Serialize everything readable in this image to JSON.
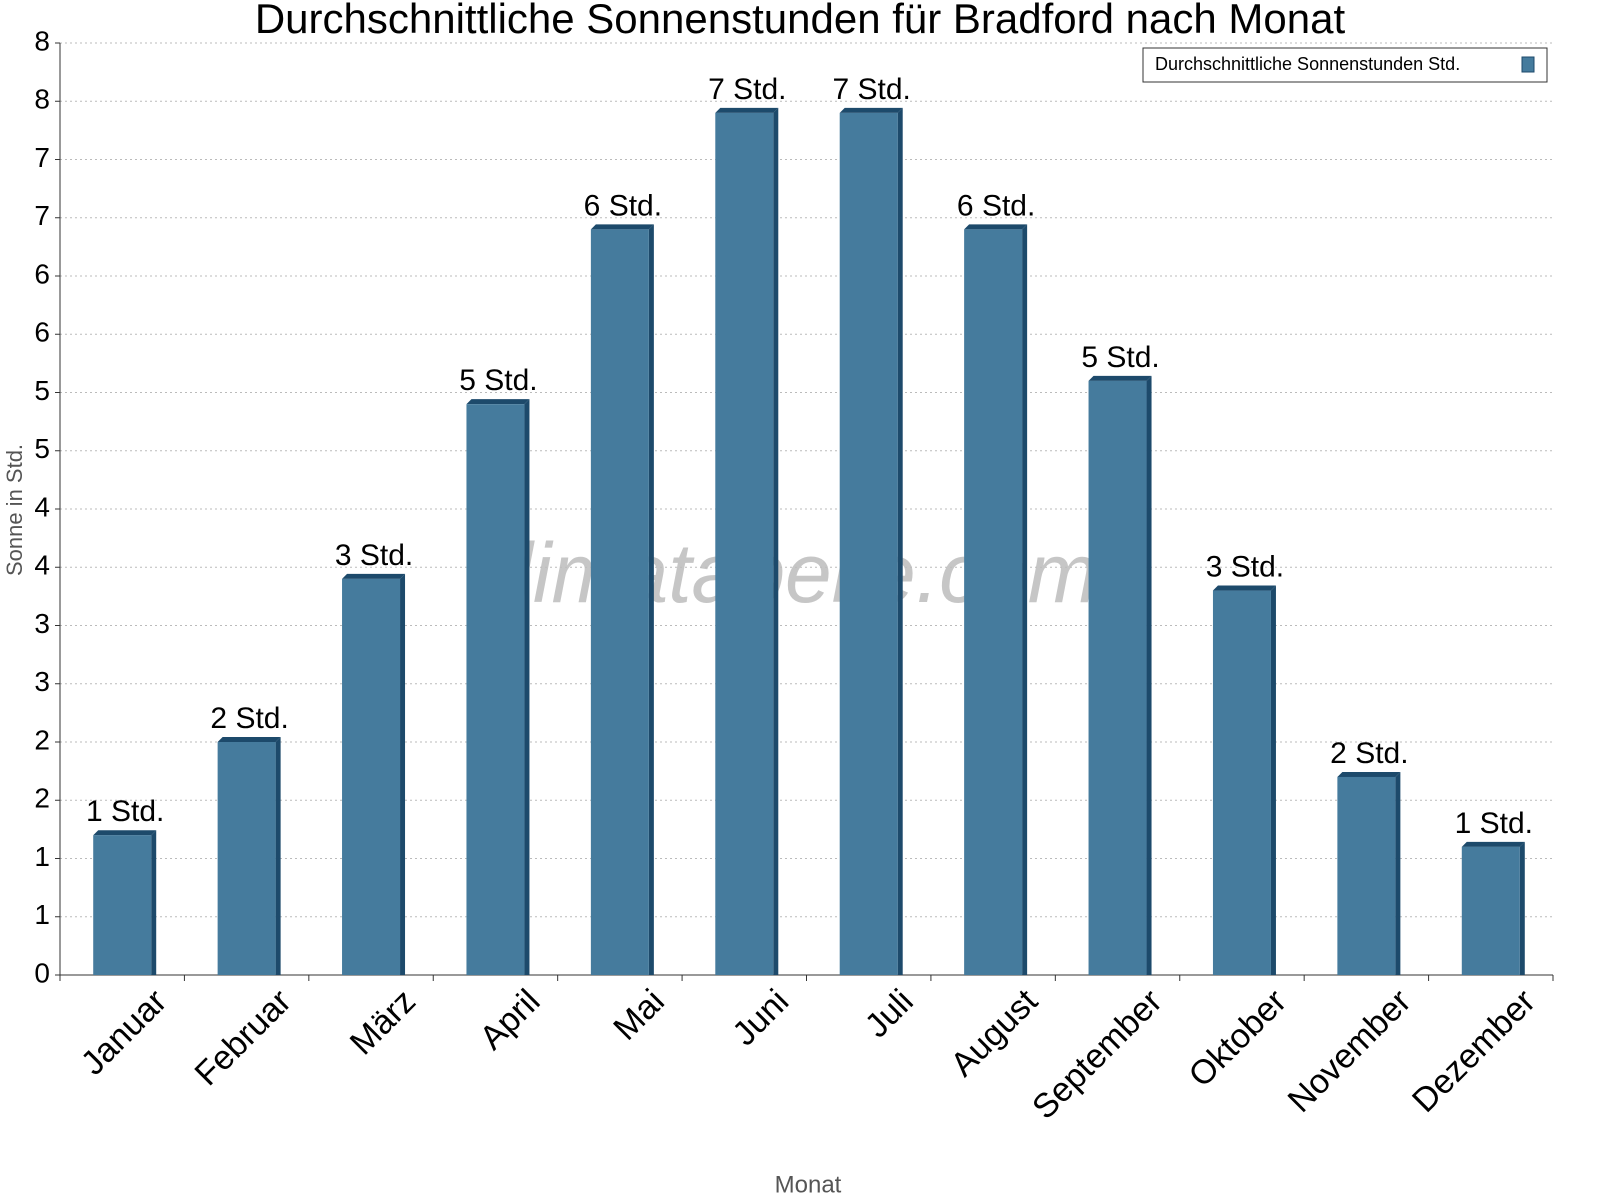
{
  "chart_data": {
    "type": "bar",
    "title": "Durchschnittliche Sonnenstunden für Bradford nach Monat",
    "x_label": "Monat",
    "y_label": "Sonne in Std.",
    "watermark": "klimatabelle.com",
    "categories": [
      "Januar",
      "Februar",
      "März",
      "April",
      "Mai",
      "Juni",
      "Juli",
      "August",
      "September",
      "Oktober",
      "November",
      "Dezember"
    ],
    "series": [
      {
        "name": "Durchschnittliche Sonnenstunden Std.",
        "color": "#457b9d",
        "values": [
          1.2,
          2.0,
          3.4,
          4.9,
          6.4,
          7.4,
          7.4,
          6.4,
          5.1,
          3.3,
          1.7,
          1.1
        ],
        "value_labels": [
          "1 Std.",
          "2 Std.",
          "3 Std.",
          "5 Std.",
          "6 Std.",
          "7 Std.",
          "7 Std.",
          "6 Std.",
          "5 Std.",
          "3 Std.",
          "2 Std.",
          "1 Std."
        ]
      }
    ],
    "ylim": [
      0,
      8
    ],
    "yticks": [
      0,
      {
        "value": 0.5,
        "label": "1"
      },
      1,
      {
        "value": 1.5,
        "label": "2"
      },
      2,
      {
        "value": 2.5,
        "label": "3"
      },
      3,
      {
        "value": 3.5,
        "label": "4"
      },
      4,
      {
        "value": 4.5,
        "label": "5"
      },
      5,
      {
        "value": 5.5,
        "label": "6"
      },
      6,
      {
        "value": 6.5,
        "label": "7"
      },
      7,
      {
        "value": 7.5,
        "label": "8"
      },
      8
    ],
    "grid": true,
    "legend": "top-right"
  }
}
